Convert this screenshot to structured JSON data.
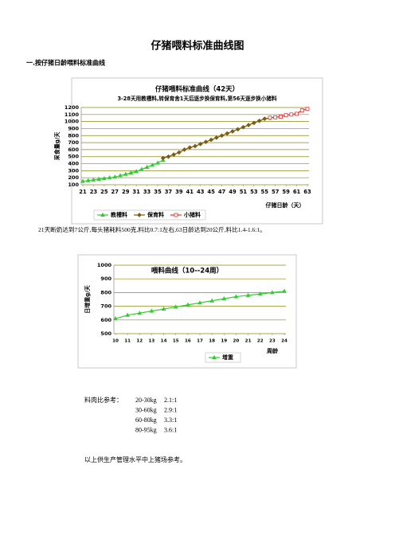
{
  "title": "仔猪喂料标准曲线图",
  "section": "一.按仔猪日龄喂料标准曲线",
  "chart_data": [
    {
      "type": "line",
      "title": "仔猪喂料标准曲线（42天）",
      "subtitle": "3-28天用教槽料,转保育舍1天后逐步换保育料,第56天逐步换小猪料",
      "y_label": "采食量g/天",
      "x_label": "仔猪日龄（天）",
      "xlim": [
        21,
        63
      ],
      "xticks": [
        21,
        23,
        25,
        27,
        29,
        31,
        33,
        35,
        37,
        39,
        41,
        43,
        45,
        47,
        49,
        51,
        53,
        55,
        57,
        59,
        61,
        63
      ],
      "ylim": [
        100,
        1200
      ],
      "yticks": [
        100,
        200,
        300,
        400,
        500,
        600,
        700,
        800,
        900,
        1000,
        1100,
        1200
      ],
      "grid": true,
      "series": [
        {
          "name": "教槽料",
          "color": "#33cc33",
          "marker": "triangle",
          "x": [
            21,
            22,
            23,
            24,
            25,
            26,
            27,
            28,
            29,
            30,
            31,
            32,
            33,
            34,
            35,
            36
          ],
          "values": [
            150,
            160,
            170,
            180,
            190,
            200,
            210,
            230,
            250,
            270,
            290,
            320,
            350,
            380,
            410,
            450
          ]
        },
        {
          "name": "保育料",
          "color": "#7a5c12",
          "marker": "diamond",
          "x": [
            36,
            37,
            38,
            39,
            40,
            41,
            42,
            43,
            44,
            45,
            46,
            47,
            48,
            49,
            50,
            51,
            52,
            53,
            54,
            55,
            56
          ],
          "values": [
            480,
            500,
            530,
            560,
            600,
            630,
            650,
            680,
            710,
            740,
            770,
            800,
            830,
            860,
            890,
            920,
            950,
            980,
            1010,
            1040,
            1050
          ]
        },
        {
          "name": "小猪料",
          "color": "#e03030",
          "marker": "square",
          "x": [
            56,
            57,
            58,
            59,
            60,
            61,
            62,
            63
          ],
          "values": [
            1055,
            1060,
            1070,
            1090,
            1100,
            1110,
            1160,
            1180
          ]
        }
      ]
    },
    {
      "type": "line",
      "title": "喂料曲线（10--24周）",
      "y_label": "日增重g/天",
      "x_label": "周龄",
      "xlim": [
        10,
        24
      ],
      "xticks": [
        10,
        11,
        12,
        13,
        14,
        15,
        16,
        17,
        18,
        19,
        20,
        21,
        22,
        23,
        24
      ],
      "ylim": [
        500,
        1000
      ],
      "yticks": [
        500,
        600,
        700,
        800,
        900,
        1000
      ],
      "grid": true,
      "series": [
        {
          "name": "增重",
          "color": "#33cc33",
          "marker": "triangle",
          "x": [
            10,
            11,
            12,
            13,
            14,
            15,
            16,
            17,
            18,
            19,
            20,
            21,
            22,
            23,
            24
          ],
          "values": [
            610,
            635,
            650,
            665,
            680,
            695,
            710,
            725,
            740,
            755,
            770,
            780,
            790,
            800,
            810
          ]
        }
      ]
    }
  ],
  "paragraph": "21天断奶达到7公斤,每头猪耗料500克,料比0.7:1左右,63日龄达到20公斤,料比1.4-1.6:1。",
  "ratio": {
    "label": "料肉比参考：",
    "rows": [
      [
        "20-30kg",
        "2.1:1"
      ],
      [
        "30-60kg",
        "2.9:1"
      ],
      [
        "60-80kg",
        "3.3:1"
      ],
      [
        "80-95kg",
        "3.6:1"
      ]
    ]
  },
  "footer": "以上供生产管理水平中上猪场参考。"
}
